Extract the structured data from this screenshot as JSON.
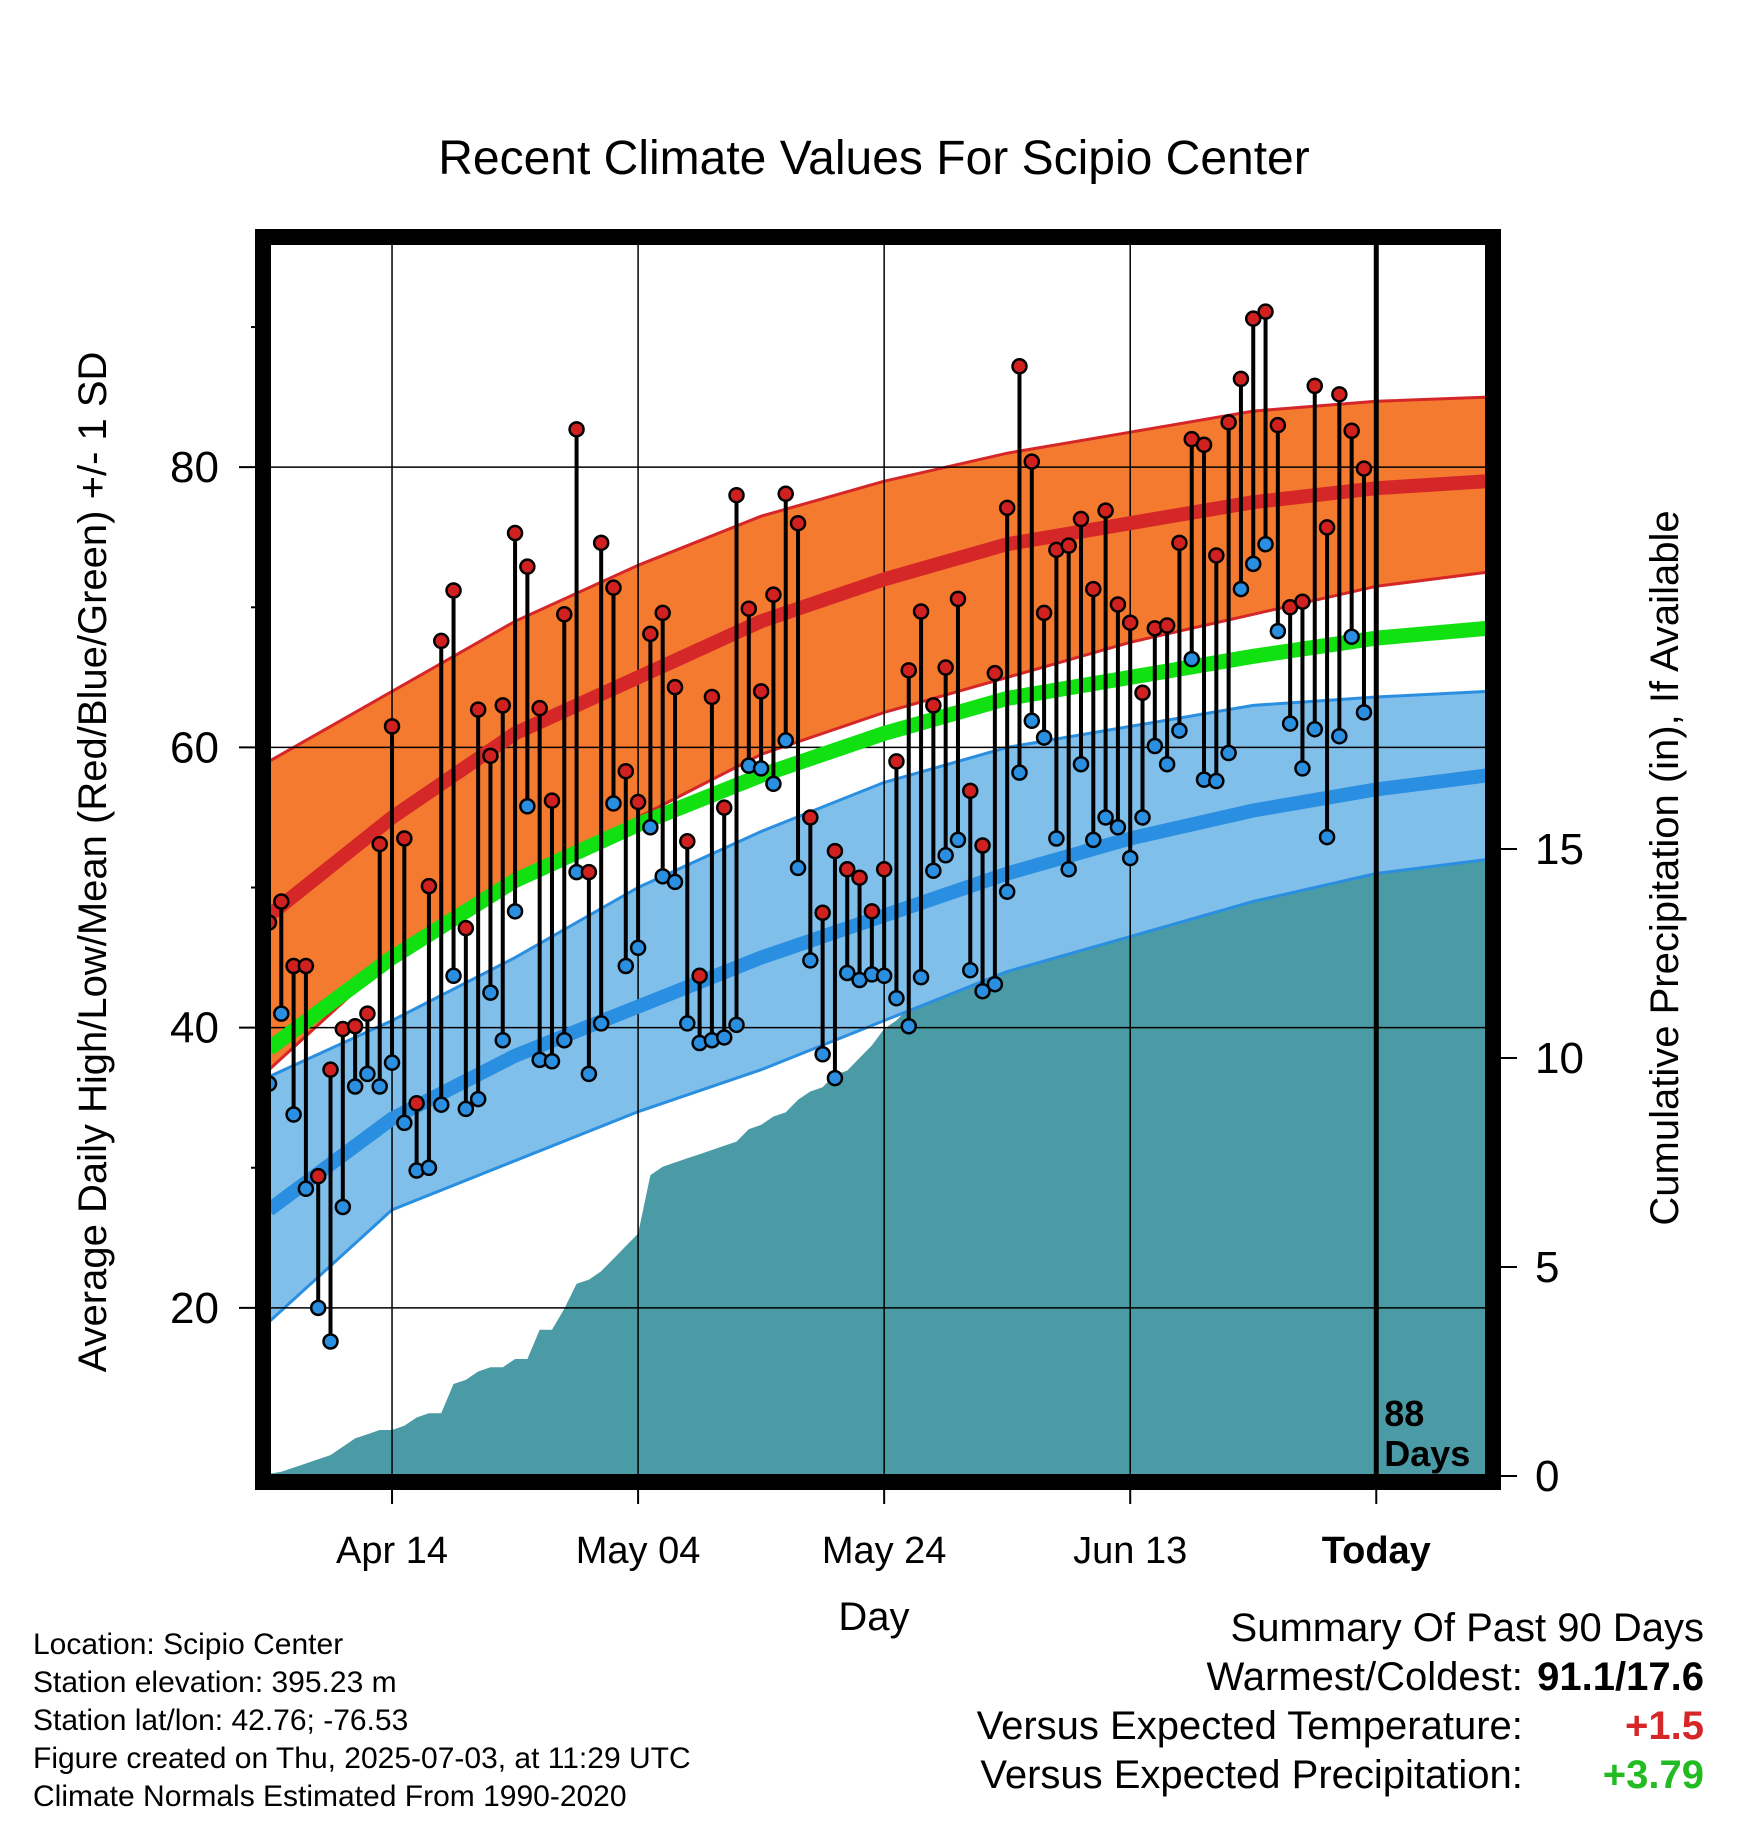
{
  "chart_data": {
    "type": "line",
    "title": "Recent Climate Values For Scipio Center",
    "xlabel": "Day",
    "ylabel": "Average Daily High/Low/Mean (Red/Blue/Green) +/- 1 SD",
    "y2label": "Cumulative Precipitation (in), If Available",
    "x_tick_labels": [
      "Apr 14",
      "May 04",
      "May 24",
      "Jun 13",
      "Today"
    ],
    "x_tick_day_index": [
      10,
      30,
      50,
      70,
      90
    ],
    "xlim_days": [
      0,
      99
    ],
    "ylim": [
      8,
      96
    ],
    "y_ticks": [
      "20",
      "40",
      "60",
      "80"
    ],
    "y_tick_values": [
      20,
      40,
      60,
      80
    ],
    "y2lim": [
      0,
      29.5
    ],
    "y2_ticks": [
      "0",
      "5",
      "10",
      "15"
    ],
    "y2_tick_values": [
      0,
      5,
      10,
      15
    ],
    "today_index": 90,
    "today_label": [
      "88",
      "Days"
    ],
    "normals": {
      "days": [
        0,
        10,
        20,
        30,
        40,
        50,
        60,
        70,
        80,
        90,
        99
      ],
      "high_mean": [
        48,
        55,
        61,
        65,
        69,
        72,
        74.5,
        76,
        77.5,
        78.5,
        79
      ],
      "high_sd_upper": [
        59,
        64,
        69,
        73,
        76.5,
        79,
        81,
        82.5,
        84,
        84.7,
        85
      ],
      "high_sd_lower": [
        37,
        45,
        50,
        55,
        59.5,
        62.5,
        65,
        67.5,
        69.5,
        71.5,
        72.5
      ],
      "mean": [
        38.5,
        45,
        50.5,
        54.5,
        58,
        61,
        63.5,
        65,
        66.5,
        67.8,
        68.5
      ],
      "low_mean": [
        27,
        33.5,
        38,
        41.5,
        45,
        48,
        51,
        53.5,
        55.5,
        57,
        58
      ],
      "low_sd_upper": [
        36.5,
        40.5,
        45,
        50,
        54,
        57.5,
        60,
        61.5,
        63,
        63.6,
        64
      ],
      "low_sd_lower": [
        19,
        27,
        30.5,
        34,
        37,
        40.5,
        44,
        46.5,
        49,
        51,
        52
      ]
    },
    "series": [
      {
        "name": "High",
        "color": "#d02020",
        "values": [
          47.5,
          49,
          44.4,
          44.4,
          29.4,
          37,
          39.9,
          40.1,
          41,
          53.1,
          61.5,
          53.5,
          34.6,
          50.1,
          67.6,
          71.2,
          47.1,
          62.7,
          59.4,
          63,
          75.3,
          72.9,
          62.8,
          56.2,
          69.5,
          82.7,
          51.1,
          74.6,
          71.4,
          58.3,
          56.1,
          68.1,
          69.6,
          64.3,
          53.3,
          43.7,
          63.6,
          55.7,
          78,
          69.9,
          64,
          70.9,
          78.1,
          76,
          55,
          48.2,
          52.6,
          51.3,
          50.7,
          48.3,
          51.3,
          59,
          65.5,
          69.7,
          63,
          65.7,
          70.6,
          56.9,
          53,
          65.3,
          77.1,
          87.2,
          80.4,
          69.6,
          74.1,
          74.4,
          76.3,
          71.3,
          76.9,
          70.2,
          68.9,
          63.9,
          68.5,
          68.7,
          74.6,
          82,
          81.6,
          73.7,
          83.2,
          86.3,
          90.6,
          91.1,
          83,
          70,
          70.4,
          85.8,
          75.7,
          85.2,
          82.6,
          79.9
        ],
        "lows": [
          36,
          41,
          33.8,
          28.5,
          20,
          17.6,
          27.2,
          35.8,
          36.7,
          35.8,
          37.5,
          33.2,
          29.8,
          30,
          34.5,
          43.7,
          34.2,
          34.9,
          42.5,
          39.1,
          48.3,
          55.8,
          37.7,
          37.6,
          39.1,
          51.1,
          36.7,
          40.3,
          56,
          44.4,
          45.7,
          54.3,
          50.8,
          50.4,
          40.3,
          38.9,
          39.1,
          39.3,
          40.2,
          58.7,
          58.5,
          57.4,
          60.5,
          51.4,
          44.8,
          38.1,
          36.4,
          43.9,
          43.4,
          43.8,
          43.7,
          42.1,
          40.1,
          43.6,
          51.2,
          52.3,
          53.4,
          44.1,
          42.6,
          43.1,
          49.7,
          58.2,
          61.9,
          60.7,
          53.5,
          51.3,
          58.8,
          53.4,
          55,
          54.3,
          52.1,
          55,
          60.1,
          58.8,
          61.2,
          66.3,
          57.7,
          57.6,
          59.6,
          71.3,
          73.1,
          74.5,
          68.3,
          61.7,
          58.5,
          61.3,
          53.6,
          60.8,
          67.9,
          62.5
        ]
      },
      {
        "name": "Low",
        "color": "#2a8fe0",
        "values": [
          36,
          41,
          33.8,
          28.5,
          20,
          17.6,
          27.2,
          35.8,
          36.7,
          35.8,
          37.5,
          33.2,
          29.8,
          30,
          34.5,
          43.7,
          34.2,
          34.9,
          42.5,
          39.1,
          48.3,
          55.8,
          37.7,
          37.6,
          39.1,
          51.1,
          36.7,
          40.3,
          56,
          44.4,
          45.7,
          54.3,
          50.8,
          50.4,
          40.3,
          38.9,
          39.1,
          39.3,
          40.2,
          58.7,
          58.5,
          57.4,
          60.5,
          51.4,
          44.8,
          38.1,
          36.4,
          43.9,
          43.4,
          43.8,
          43.7,
          42.1,
          40.1,
          43.6,
          51.2,
          52.3,
          53.4,
          44.1,
          42.6,
          43.1,
          49.7,
          58.2,
          61.9,
          60.7,
          53.5,
          51.3,
          58.8,
          53.4,
          55,
          54.3,
          52.1,
          55,
          60.1,
          58.8,
          61.2,
          66.3,
          57.7,
          57.6,
          59.6,
          71.3,
          73.1,
          74.5,
          68.3,
          61.7,
          58.5,
          61.3,
          53.6,
          60.8,
          67.9,
          62.5
        ]
      },
      {
        "name": "Cumulative Precipitation",
        "color": "#4a9ba5",
        "values": [
          0.05,
          0.1,
          0.2,
          0.3,
          0.4,
          0.5,
          0.7,
          0.9,
          1.0,
          1.1,
          1.1,
          1.2,
          1.4,
          1.5,
          1.5,
          2.2,
          2.3,
          2.5,
          2.6,
          2.6,
          2.8,
          2.8,
          3.5,
          3.5,
          4.0,
          4.6,
          4.7,
          4.9,
          5.2,
          5.5,
          5.8,
          7.2,
          7.4,
          7.5,
          7.6,
          7.7,
          7.8,
          7.9,
          8.0,
          8.3,
          8.4,
          8.6,
          8.7,
          9.0,
          9.2,
          9.3,
          9.6,
          9.7,
          10.0,
          10.3,
          10.7,
          10.9,
          11.2,
          11.4,
          11.6,
          11.8,
          12.0,
          12.1,
          12.3,
          12.4,
          12.5,
          12.6,
          13.3,
          13.6,
          14.0,
          14.1,
          14.2,
          14.7,
          14.8,
          14.8,
          14.8,
          14.8,
          14.8,
          14.9,
          15.0,
          15.1,
          15.1,
          15.1,
          15.1,
          15.1,
          15.1,
          15.1,
          15.2,
          15.2,
          15.2,
          15.2,
          15.2,
          15.2,
          15.2,
          15.2,
          15.2,
          15.2,
          15.2,
          15.2,
          15.2,
          15.2,
          15.2,
          15.2,
          15.2,
          15.2
        ]
      }
    ],
    "colors": {
      "high_band": "#f47a30",
      "high_line": "#d62728",
      "mean_line": "#11e011",
      "low_band": "#80bfea",
      "low_line": "#2a8fe0",
      "precip": "#4a9ba5"
    },
    "grid": true
  },
  "info": {
    "location": "Location: Scipio Center",
    "elevation": "Station elevation: 395.23 m",
    "latlon": "Station lat/lon: 42.76; -76.53",
    "created": "Figure created on Thu, 2025-07-03, at 11:29 UTC",
    "normals": "Climate Normals Estimated From 1990-2020"
  },
  "summary": {
    "title": "Summary Of Past 90 Days",
    "warmest_label": "Warmest/Coldest:",
    "warmest_value": "91.1/17.6",
    "temp_label": "Versus Expected Temperature:",
    "temp_value": "+1.5",
    "precip_label": "Versus Expected Precipitation:",
    "precip_value": "+3.79"
  }
}
